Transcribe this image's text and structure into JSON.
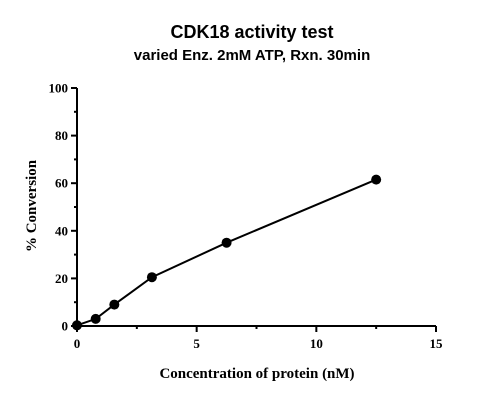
{
  "chart_data": {
    "type": "line",
    "title": "CDK18 activity test",
    "subtitle": "varied Enz. 2mM ATP, Rxn. 30min",
    "xlabel": "Concentration of protein (nM)",
    "ylabel": "% Conversion",
    "xlim": [
      0,
      15
    ],
    "ylim": [
      0,
      100
    ],
    "xticks": [
      0,
      5,
      10,
      15
    ],
    "yticks": [
      0,
      20,
      40,
      60,
      80,
      100
    ],
    "grid": false,
    "series": [
      {
        "color": "#000000",
        "marker": "circle",
        "x": [
          0,
          0.78,
          1.56,
          3.13,
          6.25,
          12.5
        ],
        "y": [
          0.3,
          3,
          9,
          20.5,
          35,
          61.5
        ]
      }
    ]
  }
}
